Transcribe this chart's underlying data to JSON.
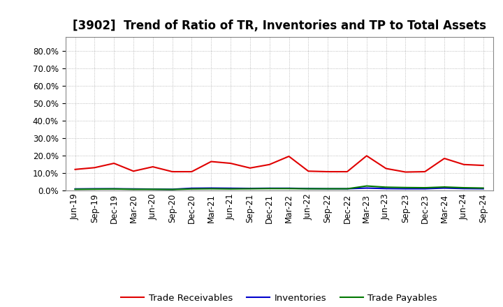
{
  "title": "[3902]  Trend of Ratio of TR, Inventories and TP to Total Assets",
  "x_labels": [
    "Jun-19",
    "Sep-19",
    "Dec-19",
    "Mar-20",
    "Jun-20",
    "Sep-20",
    "Dec-20",
    "Mar-21",
    "Jun-21",
    "Sep-21",
    "Dec-21",
    "Mar-22",
    "Jun-22",
    "Sep-22",
    "Dec-22",
    "Mar-23",
    "Jun-23",
    "Sep-23",
    "Dec-23",
    "Mar-24",
    "Jun-24",
    "Sep-24"
  ],
  "trade_receivables": [
    0.12,
    0.13,
    0.155,
    0.11,
    0.135,
    0.107,
    0.107,
    0.165,
    0.155,
    0.128,
    0.148,
    0.195,
    0.11,
    0.107,
    0.107,
    0.198,
    0.125,
    0.105,
    0.107,
    0.183,
    0.148,
    0.143
  ],
  "inventories": [
    0.008,
    0.009,
    0.009,
    0.008,
    0.007,
    0.006,
    0.012,
    0.013,
    0.012,
    0.011,
    0.012,
    0.012,
    0.01,
    0.009,
    0.009,
    0.013,
    0.01,
    0.009,
    0.009,
    0.013,
    0.01,
    0.009
  ],
  "trade_payables": [
    0.006,
    0.007,
    0.008,
    0.006,
    0.006,
    0.005,
    0.008,
    0.009,
    0.008,
    0.009,
    0.01,
    0.01,
    0.009,
    0.009,
    0.009,
    0.025,
    0.018,
    0.016,
    0.015,
    0.019,
    0.015,
    0.013
  ],
  "tr_color": "#e00000",
  "inv_color": "#0000cc",
  "tp_color": "#007700",
  "bg_color": "#ffffff",
  "plot_bg_color": "#ffffff",
  "grid_color": "#aaaaaa",
  "ylim": [
    0.0,
    0.88
  ],
  "yticks": [
    0.0,
    0.1,
    0.2,
    0.3,
    0.4,
    0.5,
    0.6,
    0.7,
    0.8
  ],
  "legend_labels": [
    "Trade Receivables",
    "Inventories",
    "Trade Payables"
  ],
  "title_fontsize": 12,
  "tick_fontsize": 8.5,
  "legend_fontsize": 9.5
}
